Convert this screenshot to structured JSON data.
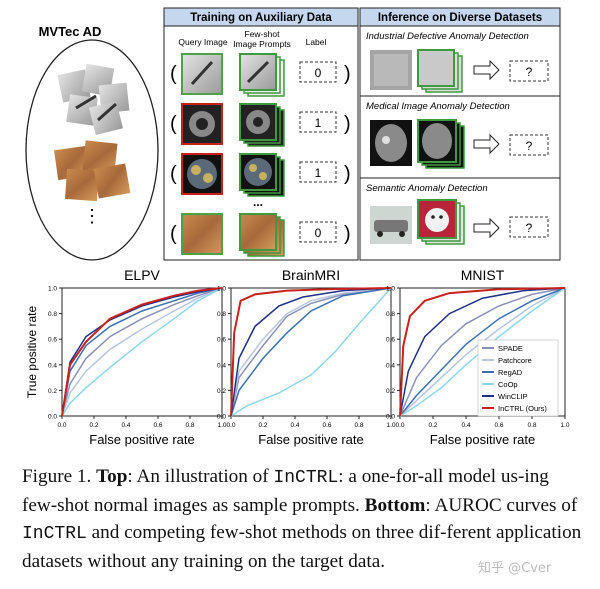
{
  "top": {
    "mvtec_title": "MVTec AD",
    "ellipsis": "⋮",
    "training_header": "Training on Auxiliary Data",
    "col_query": "Query Image",
    "col_prompts_1": "Few-shot",
    "col_prompts_2": "Image Prompts",
    "col_label": "Label",
    "labels": [
      "0",
      "1",
      "1",
      "0"
    ],
    "dots": "...",
    "inference_header": "Inference on Diverse Datasets",
    "tasks": [
      {
        "title": "Industrial Defective Anomaly Detection",
        "output": "?"
      },
      {
        "title": "Medical Image Anomaly Detection",
        "output": "?"
      },
      {
        "title": "Semantic Anomaly Detection",
        "output": "?"
      }
    ]
  },
  "chart_data": [
    {
      "type": "line",
      "title": "ELPV",
      "xlabel": "False positive rate",
      "ylabel": "True positive rate",
      "xlim": [
        0,
        1
      ],
      "ylim": [
        0,
        1
      ],
      "xticks": [
        "0.0",
        "0.2",
        "0.4",
        "0.6",
        "0.8",
        "1.0"
      ],
      "yticks": [
        "0.0",
        "0.2",
        "0.4",
        "0.6",
        "0.8",
        "1.0"
      ],
      "series": [
        {
          "name": "SPADE",
          "color": "#8a8fb8",
          "x": [
            0,
            0.05,
            0.15,
            0.3,
            0.5,
            0.7,
            0.85,
            1
          ],
          "y": [
            0,
            0.25,
            0.45,
            0.62,
            0.76,
            0.87,
            0.94,
            1
          ]
        },
        {
          "name": "Patchcore",
          "color": "#b7c5de",
          "x": [
            0,
            0.05,
            0.15,
            0.3,
            0.5,
            0.7,
            0.85,
            1
          ],
          "y": [
            0,
            0.18,
            0.35,
            0.52,
            0.68,
            0.82,
            0.92,
            1
          ]
        },
        {
          "name": "RegAD",
          "color": "#3d6fb0",
          "x": [
            0,
            0.05,
            0.15,
            0.3,
            0.5,
            0.7,
            0.85,
            1
          ],
          "y": [
            0,
            0.35,
            0.55,
            0.7,
            0.82,
            0.9,
            0.96,
            1
          ]
        },
        {
          "name": "CoOp",
          "color": "#8fd6e8",
          "x": [
            0,
            0.05,
            0.15,
            0.3,
            0.5,
            0.7,
            0.85,
            1
          ],
          "y": [
            0,
            0.1,
            0.22,
            0.38,
            0.58,
            0.76,
            0.9,
            1
          ]
        },
        {
          "name": "WinCLIP",
          "color": "#1f2f8a",
          "x": [
            0,
            0.05,
            0.15,
            0.3,
            0.5,
            0.7,
            0.85,
            1
          ],
          "y": [
            0,
            0.42,
            0.62,
            0.75,
            0.86,
            0.93,
            0.97,
            1
          ]
        },
        {
          "name": "InCTRL (Ours)",
          "color": "#c8211b",
          "x": [
            0,
            0.05,
            0.15,
            0.3,
            0.5,
            0.7,
            0.85,
            1
          ],
          "y": [
            0,
            0.4,
            0.58,
            0.76,
            0.87,
            0.94,
            0.98,
            1
          ]
        }
      ]
    },
    {
      "type": "line",
      "title": "BrainMRI",
      "xlabel": "False positive rate",
      "xlim": [
        0,
        1
      ],
      "ylim": [
        0,
        1
      ],
      "xticks": [
        "0.0",
        "0.2",
        "0.4",
        "0.6",
        "0.8",
        "1.0"
      ],
      "yticks": [
        "0.0",
        "0.2",
        "0.4",
        "0.6",
        "0.8",
        "1.0"
      ],
      "series": [
        {
          "name": "SPADE",
          "color": "#8a8fb8",
          "x": [
            0,
            0.05,
            0.2,
            0.35,
            0.5,
            0.7,
            1
          ],
          "y": [
            0,
            0.3,
            0.55,
            0.78,
            0.88,
            0.95,
            1
          ]
        },
        {
          "name": "Patchcore",
          "color": "#b7c5de",
          "x": [
            0,
            0.05,
            0.2,
            0.35,
            0.5,
            0.7,
            1
          ],
          "y": [
            0,
            0.35,
            0.6,
            0.8,
            0.9,
            0.96,
            1
          ]
        },
        {
          "name": "RegAD",
          "color": "#3d6fb0",
          "x": [
            0,
            0.05,
            0.2,
            0.35,
            0.5,
            0.7,
            1
          ],
          "y": [
            0,
            0.2,
            0.45,
            0.65,
            0.82,
            0.94,
            1
          ]
        },
        {
          "name": "CoOp",
          "color": "#8fd6e8",
          "x": [
            0,
            0.1,
            0.3,
            0.5,
            0.65,
            0.8,
            1
          ],
          "y": [
            0,
            0.08,
            0.18,
            0.32,
            0.5,
            0.72,
            1
          ]
        },
        {
          "name": "WinCLIP",
          "color": "#1f2f8a",
          "x": [
            0,
            0.05,
            0.15,
            0.3,
            0.45,
            0.7,
            1
          ],
          "y": [
            0,
            0.45,
            0.7,
            0.86,
            0.93,
            0.98,
            1
          ]
        },
        {
          "name": "InCTRL (Ours)",
          "color": "#c8211b",
          "x": [
            0,
            0.02,
            0.06,
            0.15,
            0.35,
            0.6,
            1
          ],
          "y": [
            0,
            0.65,
            0.9,
            0.95,
            0.98,
            0.99,
            1
          ]
        }
      ]
    },
    {
      "type": "line",
      "title": "MNIST",
      "xlabel": "False positive rate",
      "xlim": [
        0,
        1
      ],
      "ylim": [
        0,
        1
      ],
      "xticks": [
        "0.0",
        "0.2",
        "0.4",
        "0.6",
        "0.8",
        "1.0"
      ],
      "yticks": [
        "0.0",
        "0.2",
        "0.4",
        "0.6",
        "0.8",
        "1.0"
      ],
      "legend": "bottom-right",
      "series": [
        {
          "name": "SPADE",
          "color": "#8a8fb8",
          "x": [
            0,
            0.1,
            0.25,
            0.4,
            0.6,
            0.8,
            1
          ],
          "y": [
            0,
            0.3,
            0.55,
            0.72,
            0.86,
            0.95,
            1
          ]
        },
        {
          "name": "Patchcore",
          "color": "#b7c5de",
          "x": [
            0,
            0.1,
            0.25,
            0.4,
            0.6,
            0.8,
            1
          ],
          "y": [
            0,
            0.12,
            0.3,
            0.48,
            0.68,
            0.86,
            1
          ]
        },
        {
          "name": "RegAD",
          "color": "#3d6fb0",
          "x": [
            0,
            0.1,
            0.25,
            0.4,
            0.6,
            0.8,
            1
          ],
          "y": [
            0,
            0.16,
            0.36,
            0.56,
            0.76,
            0.9,
            1
          ]
        },
        {
          "name": "CoOp",
          "color": "#8fd6e8",
          "x": [
            0,
            0.1,
            0.25,
            0.4,
            0.6,
            0.8,
            1
          ],
          "y": [
            0,
            0.08,
            0.22,
            0.4,
            0.62,
            0.82,
            1
          ]
        },
        {
          "name": "WinCLIP",
          "color": "#1f2f8a",
          "x": [
            0,
            0.05,
            0.15,
            0.3,
            0.5,
            0.75,
            1
          ],
          "y": [
            0,
            0.35,
            0.62,
            0.8,
            0.92,
            0.98,
            1
          ]
        },
        {
          "name": "InCTRL (Ours)",
          "color": "#c8211b",
          "x": [
            0,
            0.02,
            0.06,
            0.15,
            0.3,
            0.6,
            1
          ],
          "y": [
            0,
            0.55,
            0.78,
            0.9,
            0.96,
            0.99,
            1
          ]
        }
      ]
    }
  ],
  "caption": {
    "fig_label": "Figure 1.",
    "top_label": "Top",
    "part1": ": An illustration of ",
    "method": "InCTRL",
    "part2": ": a one-for-all model us-ing few-shot normal images as sample prompts. ",
    "bottom_label": "Bottom",
    "part3": ": AUROC curves of ",
    "part4": " and competing few-shot methods on three dif-ferent application datasets without any training on the target data."
  },
  "watermark": "知乎 @Cver"
}
